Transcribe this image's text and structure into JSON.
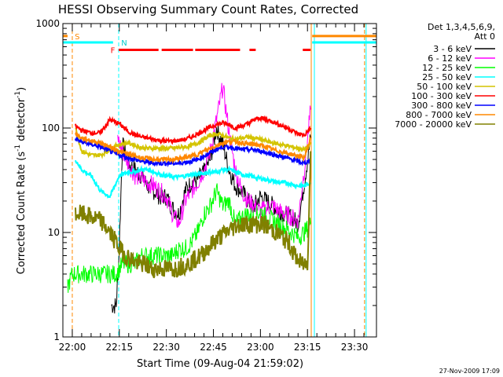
{
  "chart_data": {
    "type": "line",
    "title": "HESSI Observing Summary Count Rates, Corrected",
    "xlabel": "Start Time (09-Aug-04 21:59:02)",
    "ylabel": "Corrected Count Rate (s⁻¹ detector⁻¹)",
    "ylabel_main": "Corrected Count Rate (s",
    "ylabel_sup1": "-1",
    "ylabel_mid": " detector",
    "ylabel_sup2": "-1",
    "ylabel_end": ")",
    "y_scale": "log",
    "ylim": [
      1,
      1000
    ],
    "xlim_minutes": [
      -3,
      97
    ],
    "x_ticks": [
      {
        "label": "22:00",
        "m": 0
      },
      {
        "label": "22:15",
        "m": 15
      },
      {
        "label": "22:30",
        "m": 30
      },
      {
        "label": "22:45",
        "m": 45
      },
      {
        "label": "23:00",
        "m": 60
      },
      {
        "label": "23:15",
        "m": 75
      },
      {
        "label": "23:30",
        "m": 90
      }
    ],
    "y_ticks": [
      {
        "label": "1",
        "v": 1
      },
      {
        "label": "10",
        "v": 10
      },
      {
        "label": "100",
        "v": 100
      },
      {
        "label": "1000",
        "v": 1000
      }
    ],
    "grid": false,
    "legend_placement": "right",
    "legend_header": [
      "Det 1,3,4,5,6,9,",
      "Att 0"
    ],
    "series": [
      {
        "name": "3 - 6 keV",
        "color": "#000000",
        "x": [
          12.5,
          14,
          14.8,
          16,
          18,
          20,
          22,
          24,
          26,
          28,
          30,
          32,
          34,
          36,
          38,
          40,
          42,
          44,
          46,
          48,
          50,
          52,
          54,
          56,
          58,
          60,
          62,
          64,
          66,
          68,
          70,
          72,
          74,
          76
        ],
        "y": [
          2,
          2,
          5,
          70,
          45,
          40,
          35,
          28,
          25,
          22,
          22,
          17,
          15,
          25,
          30,
          32,
          38,
          50,
          100,
          70,
          40,
          28,
          25,
          20,
          18,
          22,
          20,
          18,
          16,
          15,
          14,
          12,
          30,
          80
        ]
      },
      {
        "name": "6 - 12 keV",
        "color": "#ff00ff",
        "x": [
          14.5,
          16,
          18,
          20,
          22,
          24,
          26,
          28,
          30,
          32,
          34,
          36,
          38,
          40,
          42,
          44,
          46,
          48,
          50,
          52,
          54,
          56,
          58,
          60,
          62,
          64,
          66,
          68,
          70,
          72,
          74,
          76
        ],
        "y": [
          80,
          60,
          45,
          35,
          33,
          30,
          28,
          25,
          22,
          15,
          12,
          20,
          25,
          30,
          40,
          60,
          120,
          250,
          90,
          40,
          25,
          20,
          18,
          16,
          17,
          18,
          16,
          15,
          14,
          13,
          40,
          150
        ]
      },
      {
        "name": "12 - 25 keV",
        "color": "#00ff00",
        "x": [
          -1.5,
          0,
          2,
          4,
          6,
          8,
          10,
          12,
          14,
          16,
          18,
          20,
          22,
          24,
          26,
          28,
          30,
          32,
          34,
          36,
          38,
          40,
          42,
          44,
          46,
          48,
          50,
          52,
          54,
          56,
          58,
          60,
          62,
          64,
          66,
          68,
          70,
          72,
          74,
          76
        ],
        "y": [
          3,
          4,
          4,
          4,
          4,
          4,
          4,
          4,
          4,
          5,
          5,
          5,
          6,
          6,
          6,
          6,
          6,
          6,
          7,
          7,
          8,
          10,
          15,
          18,
          25,
          18,
          20,
          12,
          14,
          15,
          14,
          16,
          14,
          13,
          12,
          11,
          10,
          9,
          10,
          12
        ]
      },
      {
        "name": "25 - 50 keV",
        "color": "#00ffff",
        "x": [
          1,
          3,
          6,
          9,
          12,
          15,
          18,
          20,
          22,
          24,
          26,
          28,
          30,
          32,
          34,
          36,
          38,
          40,
          42,
          44,
          46,
          48,
          50,
          52,
          54,
          56,
          58,
          60,
          62,
          64,
          66,
          68,
          70,
          72,
          74,
          76
        ],
        "y": [
          50,
          40,
          35,
          25,
          22,
          35,
          38,
          38,
          40,
          40,
          38,
          36,
          35,
          34,
          34,
          35,
          36,
          36,
          37,
          38,
          38,
          40,
          40,
          38,
          36,
          35,
          34,
          33,
          32,
          31,
          30,
          30,
          29,
          28,
          28,
          30
        ]
      },
      {
        "name": "50 - 100 keV",
        "color": "#d4c400",
        "x": [
          1,
          3,
          6,
          9,
          12,
          15,
          18,
          20,
          22,
          24,
          26,
          28,
          30,
          32,
          34,
          36,
          38,
          40,
          42,
          44,
          46,
          48,
          50,
          52,
          54,
          56,
          58,
          60,
          62,
          64,
          66,
          68,
          70,
          72,
          74,
          76
        ],
        "y": [
          100,
          60,
          55,
          55,
          62,
          70,
          72,
          68,
          65,
          64,
          64,
          64,
          64,
          64,
          65,
          66,
          68,
          72,
          78,
          85,
          88,
          85,
          80,
          78,
          80,
          82,
          80,
          78,
          75,
          72,
          70,
          68,
          66,
          64,
          62,
          70
        ]
      },
      {
        "name": "100 - 300 keV",
        "color": "#ff0000",
        "x": [
          1,
          3,
          6,
          9,
          12,
          15,
          18,
          20,
          22,
          24,
          26,
          28,
          30,
          32,
          34,
          36,
          38,
          40,
          42,
          44,
          46,
          48,
          50,
          52,
          54,
          56,
          58,
          60,
          62,
          64,
          66,
          68,
          70,
          72,
          74,
          76
        ],
        "y": [
          105,
          95,
          90,
          90,
          120,
          110,
          92,
          86,
          82,
          80,
          78,
          76,
          75,
          75,
          76,
          78,
          82,
          88,
          95,
          102,
          108,
          112,
          108,
          100,
          104,
          110,
          120,
          125,
          120,
          115,
          108,
          102,
          95,
          88,
          85,
          100
        ]
      },
      {
        "name": "300 - 800 keV",
        "color": "#0000ff",
        "x": [
          1,
          3,
          6,
          9,
          12,
          15,
          18,
          20,
          22,
          24,
          26,
          28,
          30,
          32,
          34,
          36,
          38,
          40,
          42,
          44,
          46,
          48,
          50,
          52,
          54,
          56,
          58,
          60,
          62,
          64,
          66,
          68,
          70,
          72,
          74,
          76
        ],
        "y": [
          78,
          74,
          70,
          66,
          60,
          55,
          52,
          50,
          48,
          47,
          46,
          46,
          46,
          46,
          46,
          47,
          48,
          50,
          54,
          58,
          62,
          66,
          66,
          64,
          62,
          62,
          62,
          60,
          58,
          56,
          54,
          52,
          50,
          48,
          46,
          50
        ]
      },
      {
        "name": "800 - 7000 keV",
        "color": "#ff8800",
        "x": [
          1,
          3,
          6,
          9,
          12,
          15,
          18,
          20,
          22,
          24,
          26,
          28,
          30,
          32,
          34,
          36,
          38,
          40,
          42,
          44,
          46,
          48,
          50,
          52,
          54,
          56,
          58,
          60,
          62,
          64,
          66,
          68,
          70,
          72,
          74,
          76
        ],
        "y": [
          88,
          80,
          76,
          72,
          66,
          60,
          56,
          54,
          52,
          51,
          50,
          50,
          50,
          50,
          51,
          52,
          54,
          56,
          60,
          64,
          68,
          72,
          74,
          74,
          72,
          70,
          70,
          68,
          66,
          62,
          60,
          58,
          56,
          54,
          52,
          80
        ]
      },
      {
        "name": "7000 - 20000 keV",
        "color": "#808000",
        "x": [
          1,
          3,
          6,
          9,
          11,
          13,
          15,
          17,
          19,
          21,
          23,
          25,
          27,
          29,
          31,
          33,
          35,
          37,
          39,
          41,
          43,
          45,
          47,
          49,
          51,
          53,
          55,
          57,
          59,
          61,
          63,
          65,
          67,
          69,
          71,
          73,
          75,
          76
        ],
        "y": [
          15,
          15,
          14,
          13,
          11,
          9,
          7,
          6,
          5.5,
          5,
          5,
          4.5,
          4.5,
          4.5,
          4.5,
          4.5,
          4.8,
          5,
          5.5,
          6,
          7,
          8,
          9,
          10,
          11,
          12,
          12,
          12,
          12,
          12,
          11,
          10,
          9,
          8,
          6,
          5,
          5,
          60
        ]
      }
    ],
    "annotations": {
      "S": "S",
      "N": "N",
      "F": "F",
      "saa_start": {
        "m_from": -3,
        "m_to": 13,
        "v": 660,
        "color": "#00ffff"
      },
      "saa_end": {
        "m_from": 76.5,
        "m_to": 97,
        "v": 660,
        "color": "#00ffff"
      },
      "saa_end_orange": {
        "m_from": 76.5,
        "m_to": 97,
        "v": 760,
        "color": "#ff8800"
      },
      "flag_S": {
        "m_from": -3,
        "m_to": -1.5,
        "v": 760,
        "color": "#ff8800"
      },
      "flare_segments": [
        [
          14.8,
          27.5
        ],
        [
          28.5,
          38.5
        ],
        [
          39.2,
          53.5
        ],
        [
          56.5,
          58.5
        ],
        [
          73.5,
          76
        ]
      ],
      "flare_v": 560,
      "vlines": [
        {
          "m": 0,
          "color": "#ff8800",
          "dash": true
        },
        {
          "m": 14.8,
          "color": "#00ffff",
          "dash": true
        },
        {
          "m": 76.2,
          "color": "#ff8800",
          "dash": false
        },
        {
          "m": 77.2,
          "color": "#00ffff",
          "dash": false
        },
        {
          "m": 93.2,
          "color": "#ff8800",
          "dash": true
        },
        {
          "m": 93.7,
          "color": "#00ffff",
          "dash": false
        }
      ]
    }
  },
  "footer": {
    "timestamp": "27-Nov-2009 17:09"
  }
}
